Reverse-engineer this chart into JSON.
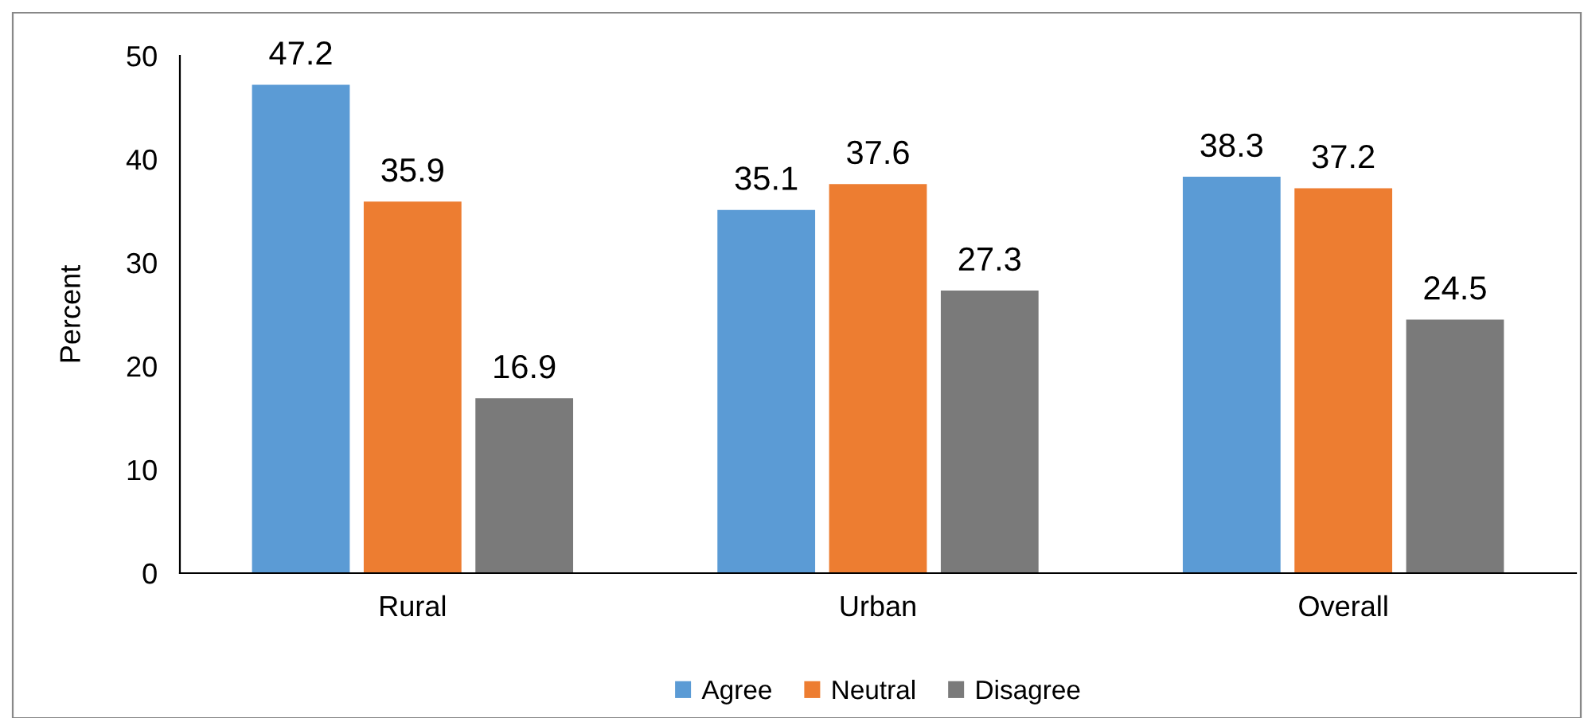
{
  "chart_data": {
    "type": "bar",
    "ylabel": "Percent",
    "categories": [
      "Rural",
      "Urban",
      "Overall"
    ],
    "series": [
      {
        "name": "Agree",
        "color": "#5b9bd5",
        "values": [
          47.2,
          35.1,
          38.3
        ]
      },
      {
        "name": "Neutral",
        "color": "#ed7d31",
        "values": [
          35.9,
          37.6,
          37.2
        ]
      },
      {
        "name": "Disagree",
        "color": "#7a7a7a",
        "values": [
          16.9,
          27.3,
          24.5
        ]
      }
    ],
    "ylim": [
      0,
      50
    ],
    "yticks": [
      0,
      10,
      20,
      30,
      40,
      50
    ],
    "grid": false,
    "legend": "bottom",
    "data_labels": true
  }
}
